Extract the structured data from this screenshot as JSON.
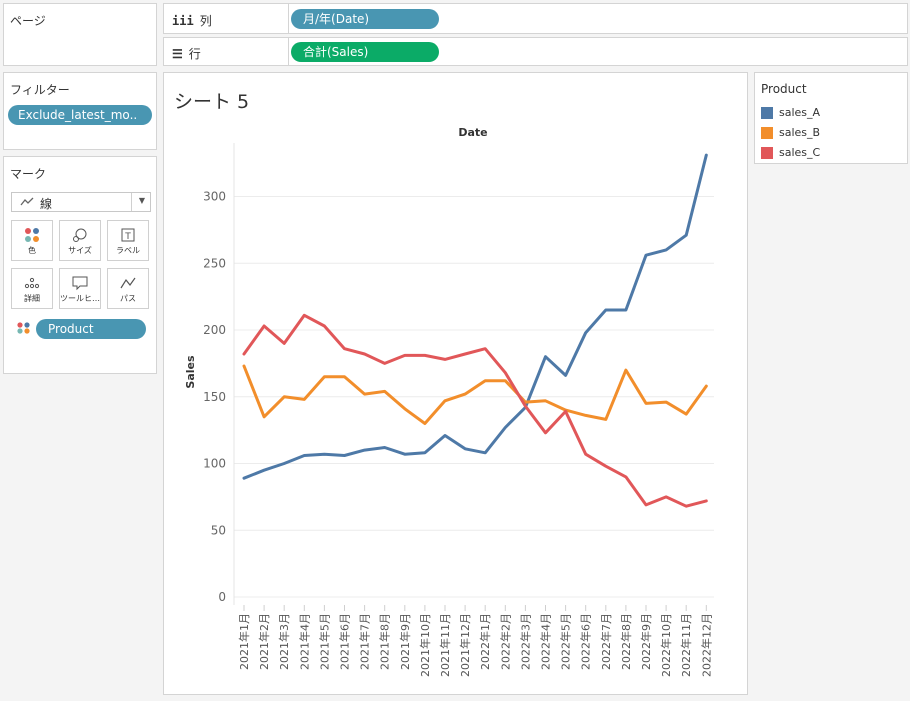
{
  "pages": {
    "title": "ページ"
  },
  "shelves": {
    "columns": {
      "icon": "iii",
      "label": "列",
      "pill": "月/年(Date)"
    },
    "rows": {
      "icon": "☰",
      "label": "行",
      "pill": "合計(Sales)"
    }
  },
  "filters": {
    "title": "フィルター",
    "pill": "Exclude_latest_mo.."
  },
  "marks": {
    "title": "マーク",
    "type_icon": "line-icon",
    "type_label": "線",
    "buttons": [
      {
        "name": "color",
        "label": "色",
        "icon": "color-dots-icon"
      },
      {
        "name": "size",
        "label": "サイズ",
        "icon": "size-icon"
      },
      {
        "name": "label",
        "label": "ラベル",
        "icon": "label-icon"
      },
      {
        "name": "detail",
        "label": "詳細",
        "icon": "detail-icon"
      },
      {
        "name": "tooltip",
        "label": "ツールヒ…",
        "icon": "tooltip-icon"
      },
      {
        "name": "path",
        "label": "パス",
        "icon": "path-icon"
      }
    ],
    "field_pill": "Product"
  },
  "sheet": {
    "title": "シート 5"
  },
  "legend": {
    "title": "Product",
    "items": [
      {
        "label": "sales_A",
        "color": "#4e79a7"
      },
      {
        "label": "sales_B",
        "color": "#f28e2b"
      },
      {
        "label": "sales_C",
        "color": "#e15759"
      }
    ]
  },
  "chart_data": {
    "type": "line",
    "title": "Date",
    "ylabel": "Sales",
    "ylim": [
      0,
      340
    ],
    "yticks": [
      0,
      50,
      100,
      150,
      200,
      250,
      300
    ],
    "grid": true,
    "x": [
      "2021年1月",
      "2021年2月",
      "2021年3月",
      "2021年4月",
      "2021年5月",
      "2021年6月",
      "2021年7月",
      "2021年8月",
      "2021年9月",
      "2021年10月",
      "2021年11月",
      "2021年12月",
      "2022年1月",
      "2022年2月",
      "2022年3月",
      "2022年4月",
      "2022年5月",
      "2022年6月",
      "2022年7月",
      "2022年8月",
      "2022年9月",
      "2022年10月",
      "2022年11月",
      "2022年12月"
    ],
    "series": [
      {
        "name": "sales_A",
        "color": "#4e79a7",
        "values": [
          89,
          95,
          100,
          106,
          107,
          106,
          110,
          112,
          107,
          108,
          121,
          111,
          108,
          127,
          142,
          180,
          166,
          198,
          215,
          215,
          256,
          260,
          271,
          331
        ]
      },
      {
        "name": "sales_B",
        "color": "#f28e2b",
        "values": [
          173,
          135,
          150,
          148,
          165,
          165,
          152,
          154,
          141,
          130,
          147,
          152,
          162,
          162,
          146,
          147,
          140,
          136,
          133,
          170,
          145,
          146,
          137,
          158
        ]
      },
      {
        "name": "sales_C",
        "color": "#e15759",
        "values": [
          182,
          203,
          190,
          211,
          203,
          186,
          182,
          175,
          181,
          181,
          178,
          182,
          186,
          168,
          143,
          123,
          139,
          107,
          98,
          90,
          69,
          75,
          68,
          72
        ]
      }
    ]
  }
}
